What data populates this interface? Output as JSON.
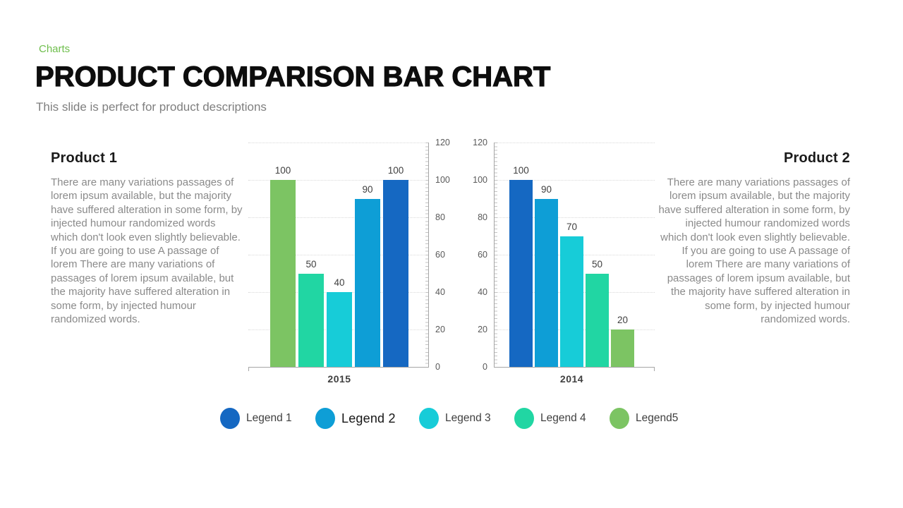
{
  "slide": {
    "eyebrow": "Charts",
    "title": "PRODUCT COMPARISON BAR CHART",
    "subtitle": "This slide is perfect for product descriptions"
  },
  "product1": {
    "heading": "Product 1",
    "body": "There are many variations passages of lorem ipsum available, but the majority have suffered alteration in some form, by injected humour randomized words which don't look even slightly believable. If you are going to use A passage of lorem There are many variations of passages of lorem ipsum available, but the majority have suffered alteration in some form, by injected humour randomized words."
  },
  "product2": {
    "heading": "Product 2",
    "body": "There are many variations passages of lorem ipsum available, but the majority have suffered alteration in some form, by injected humour randomized words which don't look even slightly believable. If you are going to use A passage of lorem There are many variations of passages of lorem ipsum available, but the majority have suffered alteration in some form, by injected humour randomized words."
  },
  "chart_data": [
    {
      "type": "bar",
      "title": "2015",
      "x_label": "2015",
      "axis_side": "right",
      "categories": [
        "Legend5",
        "Legend 4",
        "Legend 3",
        "Legend 2",
        "Legend 1"
      ],
      "values": [
        100,
        50,
        40,
        90,
        100
      ],
      "data_labels": [
        "100",
        "50",
        "40",
        "90",
        "100"
      ],
      "bar_colors": [
        "#7CC463",
        "#21D6A3",
        "#17CCD8",
        "#0E9ED6",
        "#1568C2"
      ],
      "ylim": [
        0,
        120
      ],
      "yticks": [
        0,
        20,
        40,
        60,
        80,
        100,
        120
      ],
      "grid": "dotted-horizontal",
      "legend_position": "bottom"
    },
    {
      "type": "bar",
      "title": "2014",
      "x_label": "2014",
      "axis_side": "left",
      "categories": [
        "Legend 1",
        "Legend 2",
        "Legend 3",
        "Legend 4",
        "Legend5"
      ],
      "values": [
        100,
        90,
        70,
        50,
        20
      ],
      "data_labels": [
        "100",
        "90",
        "70",
        "50",
        "20"
      ],
      "bar_colors": [
        "#1568C2",
        "#0E9ED6",
        "#17CCD8",
        "#21D6A3",
        "#7CC463"
      ],
      "ylim": [
        0,
        120
      ],
      "yticks": [
        0,
        20,
        40,
        60,
        80,
        100,
        120
      ],
      "grid": "dotted-horizontal",
      "legend_position": "bottom"
    }
  ],
  "legend": {
    "items": [
      {
        "label": "Legend 1",
        "color": "#1568C2",
        "emphasis": false
      },
      {
        "label": "Legend 2",
        "color": "#0E9ED6",
        "emphasis": true
      },
      {
        "label": "Legend 3",
        "color": "#17CCD8",
        "emphasis": false
      },
      {
        "label": "Legend 4",
        "color": "#21D6A3",
        "emphasis": false
      },
      {
        "label": "Legend5",
        "color": "#7CC463",
        "emphasis": false
      }
    ]
  },
  "colors": {
    "eyebrow_green": "#6EBE4C",
    "title_black": "#0D0D0D",
    "subtitle_gray": "#7F7F7F",
    "body_gray": "#8A8A8A",
    "axis_gray": "#A6A6A6",
    "gridline_gray": "#D9D9D9",
    "tick_label_gray": "#595959",
    "value_label_gray": "#404040"
  }
}
